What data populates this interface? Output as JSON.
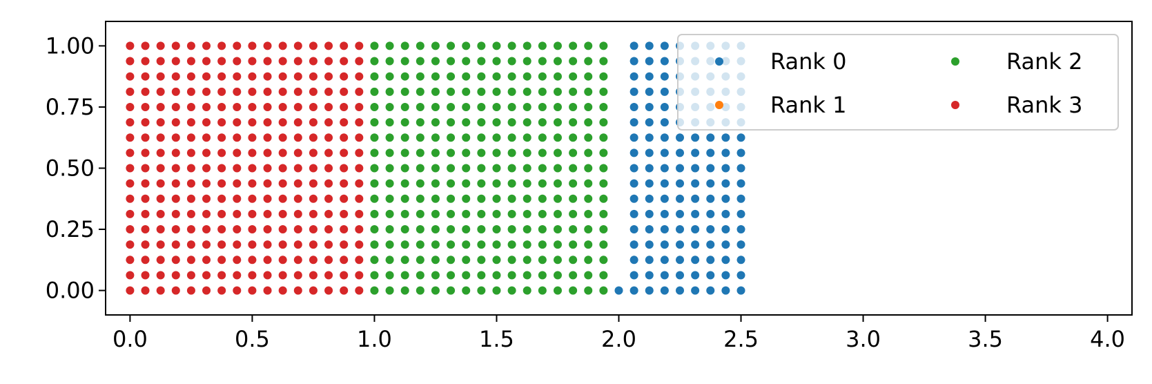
{
  "chart_data": {
    "type": "scatter",
    "title": "",
    "xlabel": "",
    "ylabel": "",
    "xlim": [
      -0.1,
      4.1
    ],
    "ylim": [
      -0.1,
      1.1
    ],
    "x_ticks": [
      0.0,
      0.5,
      1.0,
      1.5,
      2.0,
      2.5,
      3.0,
      3.5,
      4.0
    ],
    "x_tick_labels": [
      "0.0",
      "0.5",
      "1.0",
      "1.5",
      "2.0",
      "2.5",
      "3.0",
      "3.5",
      "4.0"
    ],
    "y_ticks": [
      0.0,
      0.25,
      0.5,
      0.75,
      1.0
    ],
    "y_tick_labels": [
      "0.00",
      "0.25",
      "0.50",
      "0.75",
      "1.00"
    ],
    "grid": false,
    "grid_spacing": 0.0625,
    "legend": {
      "placement": "top-right",
      "columns": 2
    },
    "series": [
      {
        "name": "Rank 0",
        "color": "#1f77b4",
        "x_range": [
          2.0,
          2.5
        ],
        "y_range": [
          0.0,
          1.0
        ],
        "note_excluded": "x=2.0 only at y=0"
      },
      {
        "name": "Rank 1",
        "color": "#ff7f0e",
        "points": []
      },
      {
        "name": "Rank 2",
        "color": "#2ca02c",
        "x_range": [
          1.0,
          2.0
        ],
        "y_range": [
          0.0,
          1.0
        ]
      },
      {
        "name": "Rank 3",
        "color": "#d62728",
        "x_range": [
          0.0,
          1.0
        ],
        "y_range": [
          0.0,
          1.0
        ]
      }
    ]
  }
}
